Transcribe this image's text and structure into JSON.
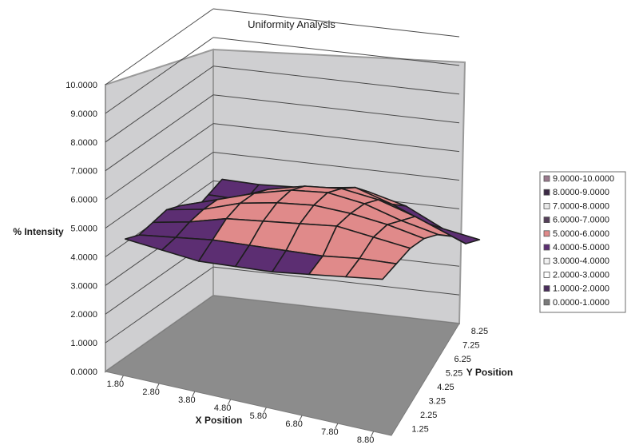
{
  "chart_data": {
    "type": "surface",
    "title": "Uniformity Analysis",
    "xlabel": "X Position",
    "ylabel": "Y Position",
    "zlabel": "% Intensity",
    "x": [
      "1.80",
      "2.80",
      "3.80",
      "4.80",
      "5.80",
      "6.80",
      "7.80",
      "8.80"
    ],
    "y": [
      "1.25",
      "2.25",
      "3.25",
      "4.25",
      "5.25",
      "6.25",
      "7.25",
      "8.25"
    ],
    "z_ticks": [
      "0.0000",
      "1.0000",
      "2.0000",
      "3.0000",
      "4.0000",
      "5.0000",
      "6.0000",
      "7.0000",
      "8.0000",
      "9.0000",
      "10.0000"
    ],
    "zlim": [
      0,
      10
    ],
    "z": [
      [
        4.6,
        4.5,
        4.4,
        4.5,
        4.6,
        4.8,
        5.0,
        5.2
      ],
      [
        4.4,
        4.6,
        4.8,
        4.9,
        5.0,
        5.1,
        5.3,
        5.4
      ],
      [
        4.5,
        4.8,
        5.2,
        5.4,
        5.6,
        5.8,
        5.7,
        5.6
      ],
      [
        4.6,
        4.9,
        5.4,
        5.7,
        5.9,
        5.9,
        5.8,
        5.6
      ],
      [
        4.4,
        4.9,
        5.4,
        5.8,
        6.0,
        5.9,
        5.6,
        5.4
      ],
      [
        3.9,
        4.6,
        5.2,
        5.6,
        5.8,
        5.7,
        5.4,
        5.0
      ],
      [
        4.1,
        4.2,
        4.8,
        5.2,
        5.5,
        5.2,
        4.8,
        4.4
      ],
      [
        4.3,
        4.4,
        4.6,
        4.8,
        5.0,
        4.8,
        4.3,
        4.2
      ]
    ],
    "legend": [
      {
        "label": "9.0000-10.0000",
        "color": "#9b7a8e"
      },
      {
        "label": "8.0000-9.0000",
        "color": "#3b2a45"
      },
      {
        "label": "7.0000-8.0000",
        "color": "#e8e8e8"
      },
      {
        "label": "6.0000-7.0000",
        "color": "#55405a"
      },
      {
        "label": "5.0000-6.0000",
        "color": "#e08a8a"
      },
      {
        "label": "4.0000-5.0000",
        "color": "#5c2e72"
      },
      {
        "label": "3.0000-4.0000",
        "color": "#f2f2f2"
      },
      {
        "label": "2.0000-3.0000",
        "color": "#ffffff"
      },
      {
        "label": "1.0000-2.0000",
        "color": "#4a2e5c"
      },
      {
        "label": "0.0000-1.0000",
        "color": "#7a7a7a"
      }
    ],
    "legend_placement": "right",
    "grid": true
  }
}
